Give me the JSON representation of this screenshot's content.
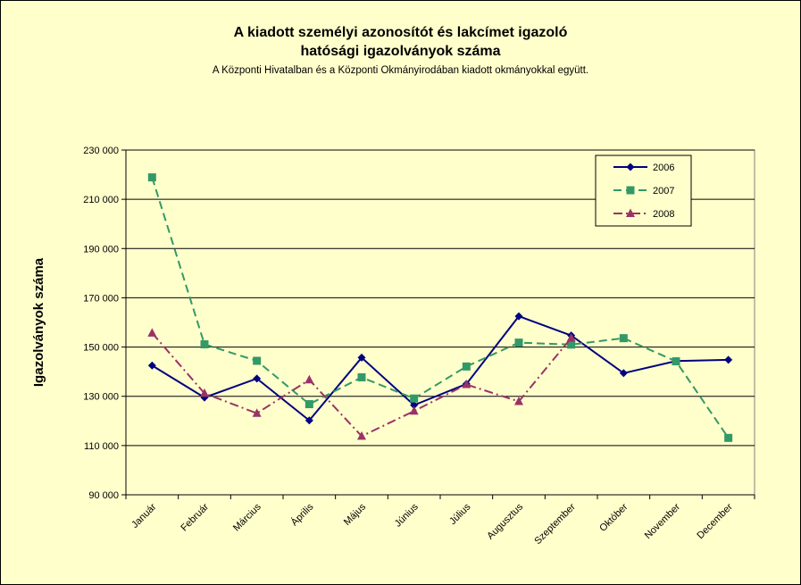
{
  "chart_data": {
    "type": "line",
    "title_line1": "A kiadott személyi azonosítót és lakcímet igazoló",
    "title_line2": "hatósági igazolványok száma",
    "subtitle": "A Központi Hivatalban és a Központi Okmányirodában kiadott okmányokkal együtt.",
    "ylabel": "Igazolványok száma",
    "xlabel": "",
    "ylim": [
      90000,
      230000
    ],
    "yticks": [
      90000,
      110000,
      130000,
      150000,
      170000,
      190000,
      210000,
      230000
    ],
    "ytick_labels": [
      "90 000",
      "110 000",
      "130 000",
      "150 000",
      "170 000",
      "190 000",
      "210 000",
      "230 000"
    ],
    "grid": true,
    "legend_position": "top-right",
    "categories": [
      "Január",
      "Február",
      "Március",
      "Április",
      "Május",
      "Június",
      "Július",
      "Augusztus",
      "Szeptember",
      "Október",
      "November",
      "December"
    ],
    "series": [
      {
        "name": "2006",
        "color": "#000080",
        "marker": "diamond",
        "dash": "solid",
        "values": [
          142500,
          129500,
          137200,
          120200,
          145700,
          126400,
          135000,
          162500,
          154700,
          139400,
          144300,
          144800
        ]
      },
      {
        "name": "2007",
        "color": "#339966",
        "marker": "square",
        "dash": "dashed",
        "values": [
          218900,
          151100,
          144400,
          126800,
          137700,
          129100,
          142100,
          151800,
          151000,
          153600,
          144200,
          113100
        ]
      },
      {
        "name": "2008",
        "color": "#993366",
        "marker": "triangle",
        "dash": "dashdot",
        "values": [
          155700,
          131200,
          123100,
          136700,
          113800,
          124000,
          134800,
          127900,
          153700,
          null,
          null,
          null
        ]
      }
    ]
  }
}
